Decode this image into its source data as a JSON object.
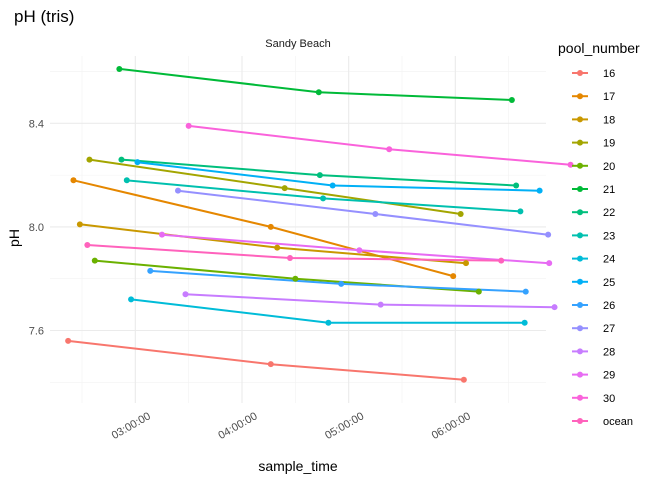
{
  "chart_data": {
    "type": "line",
    "title": "pH (tris)",
    "facet": "Sandy Beach",
    "xlabel": "sample_time",
    "ylabel": "pH",
    "x_ticks": [
      "03:00:00",
      "04:00:00",
      "05:00:00",
      "06:00:00"
    ],
    "x_tick_hours": [
      3,
      4,
      5,
      6
    ],
    "xlim_hours": [
      2.2,
      6.85
    ],
    "y_ticks": [
      7.6,
      8.0,
      8.4
    ],
    "ylim": [
      7.32,
      8.66
    ],
    "legend_title": "pool_number",
    "legend_position": "right",
    "grid": true,
    "series": [
      {
        "name": "16",
        "color": "#F8766D",
        "x": [
          2.37,
          4.27,
          6.08
        ],
        "y": [
          7.56,
          7.47,
          7.41
        ]
      },
      {
        "name": "17",
        "color": "#E58700",
        "x": [
          2.42,
          4.27,
          5.98
        ],
        "y": [
          8.18,
          8.0,
          7.81
        ]
      },
      {
        "name": "18",
        "color": "#C99800",
        "x": [
          2.48,
          4.33,
          6.1
        ],
        "y": [
          8.01,
          7.92,
          7.86
        ]
      },
      {
        "name": "19",
        "color": "#A3A500",
        "x": [
          2.57,
          4.4,
          6.05
        ],
        "y": [
          8.26,
          8.15,
          8.05
        ]
      },
      {
        "name": "20",
        "color": "#6BB100",
        "x": [
          2.62,
          4.5,
          6.22
        ],
        "y": [
          7.87,
          7.8,
          7.75
        ]
      },
      {
        "name": "21",
        "color": "#00BA38",
        "x": [
          2.85,
          4.72,
          6.53
        ],
        "y": [
          8.61,
          8.52,
          8.49
        ]
      },
      {
        "name": "22",
        "color": "#00BF7D",
        "x": [
          2.87,
          4.73,
          6.57
        ],
        "y": [
          8.26,
          8.2,
          8.16
        ]
      },
      {
        "name": "23",
        "color": "#00C0AF",
        "x": [
          2.92,
          4.76,
          6.61
        ],
        "y": [
          8.18,
          8.11,
          8.06
        ]
      },
      {
        "name": "24",
        "color": "#00BCD8",
        "x": [
          2.96,
          4.81,
          6.65
        ],
        "y": [
          7.72,
          7.63,
          7.63
        ]
      },
      {
        "name": "25",
        "color": "#00B0F6",
        "x": [
          3.02,
          4.85,
          6.79
        ],
        "y": [
          8.25,
          8.16,
          8.14
        ]
      },
      {
        "name": "26",
        "color": "#35A2FF",
        "x": [
          3.14,
          4.93,
          6.66
        ],
        "y": [
          7.83,
          7.78,
          7.75
        ]
      },
      {
        "name": "27",
        "color": "#9590FF",
        "x": [
          3.4,
          5.25,
          6.87
        ],
        "y": [
          8.14,
          8.05,
          7.97
        ]
      },
      {
        "name": "28",
        "color": "#C77CFF",
        "x": [
          3.47,
          5.3,
          6.93
        ],
        "y": [
          7.74,
          7.7,
          7.69
        ]
      },
      {
        "name": "29",
        "color": "#E76BF3",
        "x": [
          3.25,
          5.1,
          6.88
        ],
        "y": [
          7.97,
          7.91,
          7.86
        ]
      },
      {
        "name": "30",
        "color": "#FA62DB",
        "x": [
          3.5,
          5.38,
          7.08
        ],
        "y": [
          8.39,
          8.3,
          8.24
        ]
      },
      {
        "name": "ocean",
        "color": "#FF62BC",
        "x": [
          2.55,
          4.45,
          6.43
        ],
        "y": [
          7.93,
          7.88,
          7.87
        ]
      }
    ]
  }
}
